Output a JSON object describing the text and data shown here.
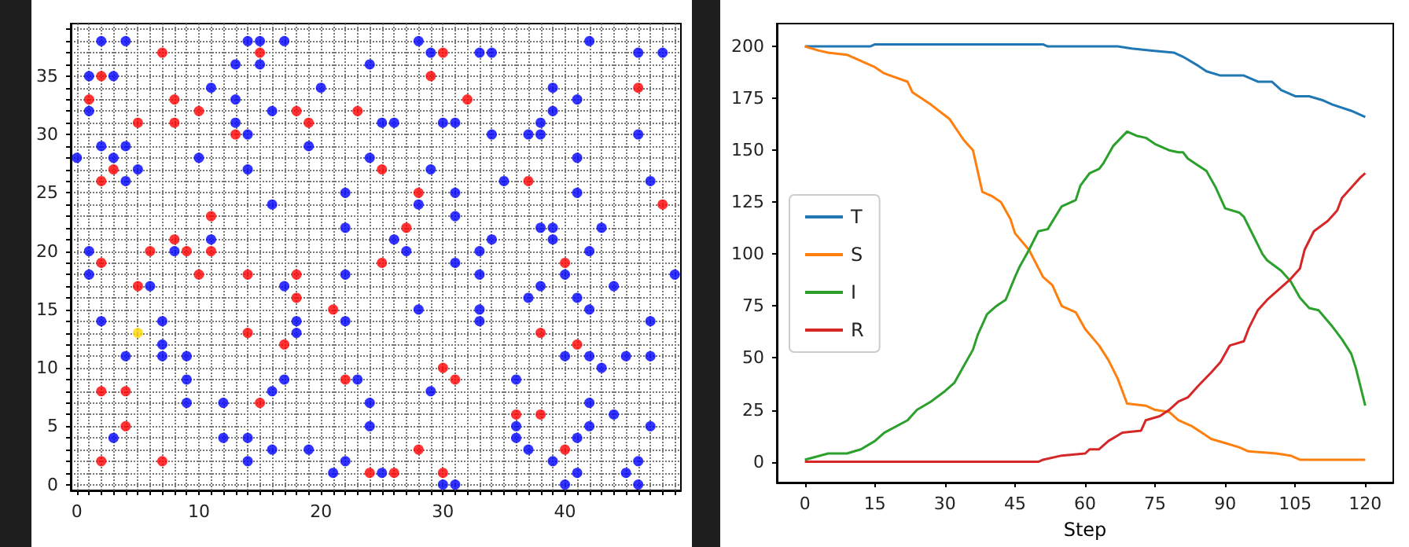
{
  "chart_data": [
    {
      "type": "scatter",
      "marker": "circle",
      "grid": true,
      "xlim": [
        -0.5,
        49.5
      ],
      "ylim": [
        -0.5,
        39.5
      ],
      "xticks": [
        0,
        {
          "value": 1,
          "label": null
        },
        {
          "value": 2,
          "label": null
        },
        {
          "value": 3,
          "label": null
        },
        {
          "value": 4,
          "label": null
        },
        {
          "value": 5,
          "label": null
        },
        {
          "value": 6,
          "label": null
        },
        {
          "value": 7,
          "label": null
        },
        {
          "value": 8,
          "label": null
        },
        {
          "value": 9,
          "label": null
        },
        10,
        {
          "value": 11,
          "label": null
        },
        {
          "value": 12,
          "label": null
        },
        {
          "value": 13,
          "label": null
        },
        {
          "value": 14,
          "label": null
        },
        {
          "value": 15,
          "label": null
        },
        {
          "value": 16,
          "label": null
        },
        {
          "value": 17,
          "label": null
        },
        {
          "value": 18,
          "label": null
        },
        {
          "value": 19,
          "label": null
        },
        20,
        {
          "value": 21,
          "label": null
        },
        {
          "value": 22,
          "label": null
        },
        {
          "value": 23,
          "label": null
        },
        {
          "value": 24,
          "label": null
        },
        {
          "value": 25,
          "label": null
        },
        {
          "value": 26,
          "label": null
        },
        {
          "value": 27,
          "label": null
        },
        {
          "value": 28,
          "label": null
        },
        {
          "value": 29,
          "label": null
        },
        30,
        {
          "value": 31,
          "label": null
        },
        {
          "value": 32,
          "label": null
        },
        {
          "value": 33,
          "label": null
        },
        {
          "value": 34,
          "label": null
        },
        {
          "value": 35,
          "label": null
        },
        {
          "value": 36,
          "label": null
        },
        {
          "value": 37,
          "label": null
        },
        {
          "value": 38,
          "label": null
        },
        {
          "value": 39,
          "label": null
        },
        40,
        {
          "value": 41,
          "label": null
        },
        {
          "value": 42,
          "label": null
        },
        {
          "value": 43,
          "label": null
        },
        {
          "value": 44,
          "label": null
        },
        {
          "value": 45,
          "label": null
        },
        {
          "value": 46,
          "label": null
        },
        {
          "value": 47,
          "label": null
        },
        {
          "value": 48,
          "label": null
        },
        {
          "value": 49,
          "label": null
        }
      ],
      "yticks": [
        0,
        {
          "value": 1,
          "label": null
        },
        {
          "value": 2,
          "label": null
        },
        {
          "value": 3,
          "label": null
        },
        {
          "value": 4,
          "label": null
        },
        5,
        {
          "value": 6,
          "label": null
        },
        {
          "value": 7,
          "label": null
        },
        {
          "value": 8,
          "label": null
        },
        {
          "value": 9,
          "label": null
        },
        10,
        {
          "value": 11,
          "label": null
        },
        {
          "value": 12,
          "label": null
        },
        {
          "value": 13,
          "label": null
        },
        {
          "value": 14,
          "label": null
        },
        15,
        {
          "value": 16,
          "label": null
        },
        {
          "value": 17,
          "label": null
        },
        {
          "value": 18,
          "label": null
        },
        {
          "value": 19,
          "label": null
        },
        20,
        {
          "value": 21,
          "label": null
        },
        {
          "value": 22,
          "label": null
        },
        {
          "value": 23,
          "label": null
        },
        {
          "value": 24,
          "label": null
        },
        25,
        {
          "value": 26,
          "label": null
        },
        {
          "value": 27,
          "label": null
        },
        {
          "value": 28,
          "label": null
        },
        {
          "value": 29,
          "label": null
        },
        30,
        {
          "value": 31,
          "label": null
        },
        {
          "value": 32,
          "label": null
        },
        {
          "value": 33,
          "label": null
        },
        {
          "value": 34,
          "label": null
        },
        35,
        {
          "value": 36,
          "label": null
        },
        {
          "value": 37,
          "label": null
        },
        {
          "value": 38,
          "label": null
        },
        {
          "value": 39,
          "label": null
        }
      ],
      "series": [
        {
          "color": "#0000ff",
          "x": [
            2,
            4,
            1,
            3,
            1,
            11,
            0,
            2,
            4,
            3,
            4,
            5,
            10,
            13,
            13,
            13,
            14,
            14,
            14,
            15,
            15,
            17,
            16,
            16,
            19,
            20,
            22,
            22,
            1,
            8,
            11,
            28,
            29,
            24,
            33,
            34,
            42,
            46,
            48,
            39,
            41,
            39,
            25,
            26,
            30,
            31,
            38,
            34,
            37,
            38,
            46,
            24,
            29,
            41,
            35,
            47,
            31,
            41,
            28,
            31,
            38,
            39,
            43,
            26,
            34,
            39,
            27,
            33,
            42,
            31,
            1,
            22,
            6,
            17,
            2,
            7,
            18,
            22,
            18,
            7,
            4,
            7,
            9,
            23,
            9,
            17,
            16,
            9,
            12,
            3,
            12,
            14,
            16,
            19,
            14,
            22,
            21,
            33,
            40,
            49,
            38,
            44,
            37,
            41,
            28,
            33,
            42,
            33,
            47,
            40,
            42,
            45,
            47,
            43,
            36,
            29,
            24,
            42,
            44,
            24,
            36,
            42,
            47,
            36,
            41,
            37,
            39,
            46,
            25,
            41,
            45,
            30,
            31,
            40,
            46
          ],
          "values": [
            38,
            38,
            35,
            35,
            32,
            34,
            28,
            29,
            29,
            28,
            26,
            27,
            28,
            36,
            33,
            31,
            30,
            27,
            38,
            38,
            36,
            38,
            32,
            24,
            29,
            34,
            25,
            22,
            20,
            20,
            21,
            38,
            37,
            36,
            37,
            37,
            38,
            37,
            37,
            34,
            33,
            32,
            31,
            31,
            31,
            31,
            31,
            30,
            30,
            30,
            30,
            28,
            27,
            28,
            26,
            26,
            25,
            25,
            24,
            23,
            22,
            22,
            22,
            21,
            21,
            21,
            20,
            20,
            20,
            19,
            18,
            18,
            17,
            17,
            14,
            14,
            14,
            14,
            13,
            12,
            11,
            11,
            11,
            9,
            9,
            9,
            8,
            7,
            7,
            4,
            4,
            4,
            3,
            3,
            2,
            2,
            1,
            18,
            18,
            18,
            17,
            17,
            16,
            16,
            15,
            15,
            15,
            14,
            14,
            11,
            11,
            11,
            11,
            10,
            9,
            8,
            7,
            7,
            6,
            5,
            5,
            5,
            5,
            4,
            4,
            3,
            2,
            2,
            1,
            1,
            1,
            0,
            0,
            0,
            0
          ]
        },
        {
          "color": "#ff0000",
          "x": [
            7,
            2,
            1,
            5,
            8,
            8,
            10,
            3,
            2,
            13,
            15,
            18,
            19,
            23,
            2,
            6,
            9,
            8,
            11,
            11,
            30,
            29,
            32,
            46,
            25,
            37,
            28,
            48,
            27,
            25,
            40,
            10,
            14,
            18,
            5,
            18,
            21,
            14,
            17,
            22,
            2,
            4,
            15,
            4,
            2,
            7,
            38,
            41,
            30,
            31,
            36,
            38,
            28,
            40,
            24,
            26,
            30
          ],
          "values": [
            37,
            35,
            33,
            31,
            33,
            31,
            32,
            27,
            26,
            30,
            37,
            32,
            31,
            32,
            19,
            20,
            20,
            21,
            20,
            23,
            37,
            35,
            33,
            34,
            27,
            26,
            25,
            24,
            22,
            19,
            19,
            18,
            18,
            18,
            17,
            16,
            15,
            13,
            12,
            9,
            8,
            8,
            7,
            5,
            2,
            2,
            13,
            12,
            10,
            9,
            6,
            6,
            3,
            3,
            1,
            1,
            1
          ]
        },
        {
          "color": "#ffd700",
          "x": [
            5
          ],
          "values": [
            13
          ]
        }
      ]
    },
    {
      "type": "line",
      "xlabel": "Step",
      "legend": "left",
      "xlim": [
        -6,
        126
      ],
      "ylim": [
        -10,
        211
      ],
      "xticks": [
        0,
        15,
        30,
        45,
        60,
        75,
        90,
        105,
        120
      ],
      "yticks": [
        0,
        25,
        50,
        75,
        100,
        125,
        150,
        175,
        200
      ],
      "series": [
        {
          "name": "T",
          "color": "#1f77b4",
          "x": [
            0,
            14,
            15,
            51,
            52,
            67,
            70,
            74,
            79,
            81,
            84,
            86,
            89,
            94,
            97,
            100,
            102,
            105,
            108,
            111,
            113,
            117,
            120
          ],
          "values": [
            200,
            200,
            201,
            201,
            200,
            200,
            199,
            198,
            197,
            195,
            191,
            188,
            186,
            186,
            183,
            183,
            179,
            176,
            176,
            174,
            172,
            169,
            166
          ]
        },
        {
          "name": "S",
          "color": "#ff7f0e",
          "x": [
            0,
            3,
            5,
            9,
            11,
            15,
            17,
            22,
            23,
            27,
            31,
            34,
            36,
            37,
            38,
            40,
            42,
            44,
            45,
            48,
            51,
            53,
            55,
            58,
            60,
            63,
            65,
            67,
            69,
            73,
            75,
            78,
            80,
            83,
            85,
            87,
            90,
            93,
            95,
            101,
            104,
            106,
            120
          ],
          "values": [
            200,
            198,
            197,
            196,
            194,
            190,
            187,
            183,
            178,
            172,
            165,
            155,
            150,
            140,
            130,
            128,
            125,
            117,
            110,
            102,
            89,
            85,
            75,
            72,
            64,
            56,
            49,
            40,
            28,
            27,
            25,
            24,
            20,
            17,
            14,
            11,
            9,
            7,
            5,
            4,
            3,
            1,
            1
          ]
        },
        {
          "name": "I",
          "color": "#2ca02c",
          "x": [
            0,
            5,
            9,
            12,
            15,
            17,
            22,
            24,
            27,
            30,
            32,
            34,
            36,
            37,
            39,
            41,
            43,
            45,
            46,
            48,
            50,
            52,
            55,
            58,
            59,
            61,
            63,
            64,
            66,
            69,
            71,
            73,
            75,
            78,
            80,
            81,
            82,
            84,
            86,
            88,
            90,
            93,
            94,
            96,
            98,
            99,
            102,
            104,
            106,
            108,
            110,
            113,
            115,
            117,
            118,
            119,
            120
          ],
          "values": [
            1,
            4,
            4,
            6,
            10,
            14,
            20,
            25,
            29,
            34,
            38,
            46,
            54,
            61,
            71,
            75,
            78,
            89,
            94,
            102,
            111,
            112,
            123,
            126,
            133,
            139,
            141,
            144,
            152,
            159,
            157,
            156,
            153,
            150,
            149,
            149,
            146,
            143,
            140,
            132,
            122,
            120,
            118,
            109,
            100,
            97,
            92,
            87,
            79,
            74,
            73,
            65,
            59,
            52,
            45,
            36,
            27
          ]
        },
        {
          "name": "R",
          "color": "#d62728",
          "x": [
            0,
            50,
            51,
            55,
            60,
            61,
            63,
            65,
            68,
            72,
            73,
            76,
            78,
            80,
            82,
            84,
            87,
            89,
            91,
            94,
            95,
            97,
            99,
            101,
            104,
            106,
            107,
            109,
            112,
            114,
            115,
            117,
            119,
            120
          ],
          "values": [
            0,
            0,
            1,
            3,
            4,
            6,
            6,
            10,
            14,
            15,
            20,
            22,
            25,
            29,
            31,
            36,
            43,
            48,
            56,
            58,
            64,
            73,
            78,
            82,
            88,
            93,
            102,
            111,
            116,
            121,
            127,
            132,
            137,
            139
          ]
        }
      ]
    }
  ]
}
